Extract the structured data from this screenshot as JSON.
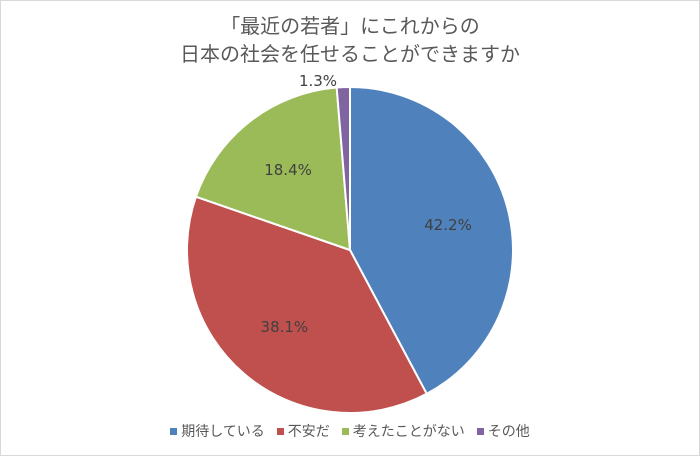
{
  "chart_data": {
    "type": "pie",
    "title": "「最近の若者」にこれからの 日本の社会を任せることができますか",
    "title_lines": [
      "「最近の若者」にこれからの",
      "日本の社会を任せることができますか"
    ],
    "categories": [
      "期待している",
      "不安だ",
      "考えたことがない",
      "その他"
    ],
    "values": [
      42.2,
      38.1,
      18.4,
      1.3
    ],
    "labels": [
      "42.2%",
      "38.1%",
      "18.4%",
      "1.3%"
    ],
    "colors": [
      "#4f81bd",
      "#c0504d",
      "#9bbb59",
      "#8064a2"
    ],
    "start_angle_deg": 0,
    "direction": "clockwise",
    "legend_position": "bottom"
  }
}
